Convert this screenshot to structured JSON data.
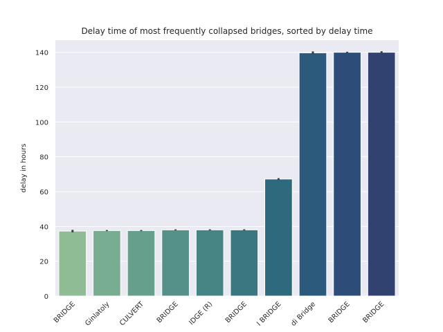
{
  "chart_data": {
    "type": "bar",
    "title": "Delay time of most frequently collapsed bridges, sorted by delay time",
    "xlabel": "",
    "ylabel": "delay in hours",
    "ylim": [
      0,
      147
    ],
    "yticks": [
      0,
      20,
      40,
      60,
      80,
      100,
      120,
      140
    ],
    "grid": true,
    "categories": [
      "BRIDGE",
      "Ginlatoly",
      "CULVERT",
      "BRIDGE",
      "IDGE (R)",
      "BRIDGE",
      "I BRIDGE",
      "di Bridge",
      "BRIDGE",
      "BRIDGE"
    ],
    "values": [
      37.3,
      37.6,
      37.6,
      38.0,
      38.0,
      38.0,
      67.2,
      139.7,
      140.0,
      140.0
    ],
    "errors": [
      0.7,
      0.3,
      0.3,
      0.3,
      0.3,
      0.3,
      0.5,
      0.8,
      0.3,
      0.6
    ],
    "colors": [
      "#8fbc95",
      "#79ad91",
      "#679f8d",
      "#569189",
      "#478484",
      "#3b7780",
      "#2d6a7e",
      "#2b5a7c",
      "#2d4d78",
      "#314170"
    ],
    "background": "#eaeaf2",
    "error_color": "#3c3c3c"
  }
}
